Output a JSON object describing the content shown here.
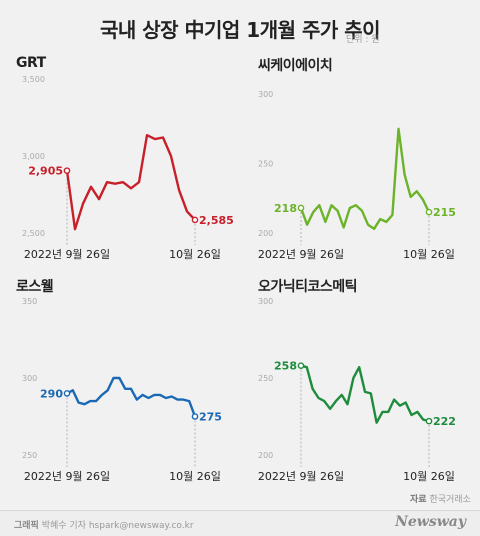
{
  "header": {
    "title": "국내 상장 中기업 1개월 주가 추이",
    "unit": "단위 : 원"
  },
  "source": {
    "label": "자료",
    "text": "한국거래소"
  },
  "footer": {
    "credit_label": "그래픽",
    "credit_text": "박혜수 기자 hspark@newsway.co.kr",
    "logo": "Newsway"
  },
  "chart_data": [
    {
      "type": "line",
      "title": "GRT",
      "color": "#c8202a",
      "ylim": [
        2500,
        3500
      ],
      "yticks": [
        2500,
        3000,
        3500
      ],
      "ytick_labels": [
        "2,500",
        "3,000",
        "3,500"
      ],
      "start_label": "2022년 9월 26일",
      "end_label": "10월 26일",
      "values": [
        2905,
        2525,
        2690,
        2800,
        2720,
        2830,
        2820,
        2830,
        2790,
        2830,
        3135,
        3110,
        3120,
        3000,
        2780,
        2640,
        2585
      ],
      "first_label": "2,905",
      "last_label": "2,585"
    },
    {
      "type": "line",
      "title": "씨케이에이치",
      "color": "#6cb32a",
      "ylim": [
        200,
        300
      ],
      "yticks": [
        200,
        250,
        300
      ],
      "ytick_labels": [
        "200",
        "250",
        "300"
      ],
      "start_label": "2022년 9월 26일",
      "end_label": "10월 26일",
      "values": [
        218,
        206,
        215,
        220,
        208,
        220,
        216,
        204,
        218,
        220,
        216,
        206,
        203,
        210,
        208,
        213,
        275,
        242,
        226,
        230,
        224,
        215
      ],
      "first_label": "218",
      "last_label": "215"
    },
    {
      "type": "line",
      "title": "로스웰",
      "color": "#1a69b5",
      "ylim": [
        250,
        350
      ],
      "yticks": [
        250,
        300,
        350
      ],
      "ytick_labels": [
        "250",
        "300",
        "350"
      ],
      "start_label": "2022년 9월 26일",
      "end_label": "10월 26일",
      "values": [
        290,
        292,
        284,
        283,
        285,
        285,
        289,
        292,
        300,
        300,
        293,
        293,
        286,
        289,
        287,
        289,
        289,
        287,
        288,
        286,
        286,
        285,
        275
      ],
      "first_label": "290",
      "last_label": "275"
    },
    {
      "type": "line",
      "title": "오가닉티코스메틱",
      "color": "#1e8c3c",
      "ylim": [
        200,
        300
      ],
      "yticks": [
        200,
        250,
        300
      ],
      "ytick_labels": [
        "200",
        "250",
        "300"
      ],
      "start_label": "2022년 9월 26일",
      "end_label": "10월 26일",
      "values": [
        258,
        257,
        243,
        237,
        235,
        230,
        235,
        239,
        233,
        250,
        257,
        241,
        240,
        221,
        228,
        228,
        236,
        232,
        234,
        226,
        228,
        223,
        222
      ],
      "first_label": "258",
      "last_label": "222"
    }
  ]
}
